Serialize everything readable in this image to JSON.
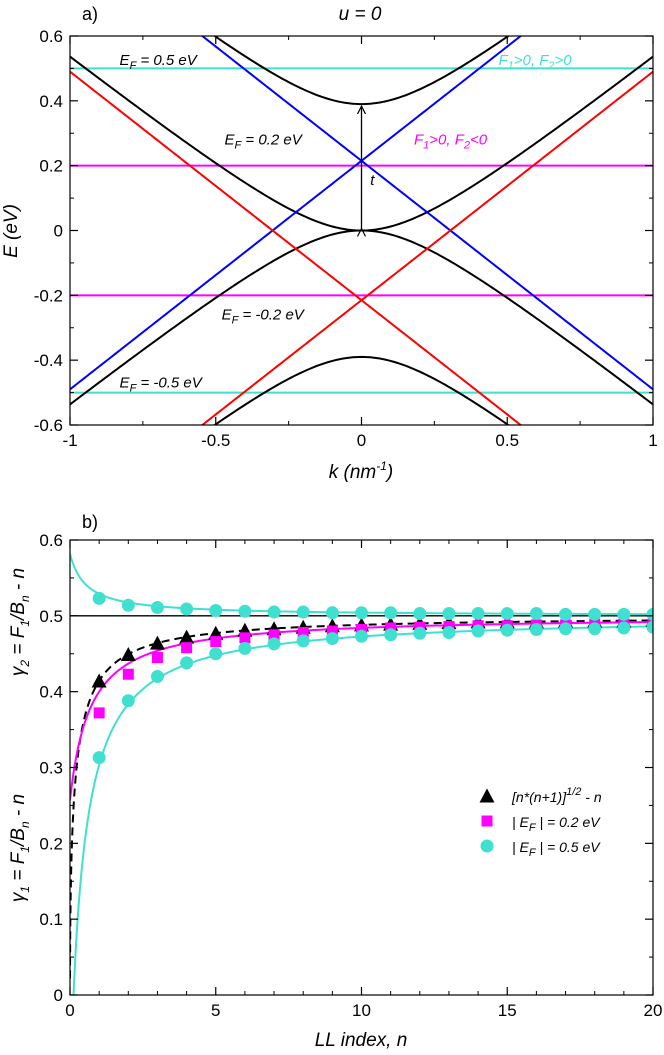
{
  "colors": {
    "black": "#000000",
    "red": "#ff0000",
    "blue": "#0000ff",
    "magenta": "#ff00ff",
    "cyan": "#40e0d0"
  },
  "chart_data": [
    {
      "type": "line",
      "panel_label": "a)",
      "title": "u = 0",
      "xlabel": "k (nm",
      "xlabel_sup": "-1",
      "xlabel_tail": ")",
      "ylabel": "E (eV)",
      "xlim": [
        -1,
        1
      ],
      "ylim": [
        -0.6,
        0.6
      ],
      "xticks": [
        -1,
        -0.5,
        0,
        0.5,
        1
      ],
      "xtick_labels": [
        "-1",
        "-0.5",
        "0",
        "0.5",
        "1"
      ],
      "yticks": [
        -0.6,
        -0.4,
        -0.2,
        0,
        0.2,
        0.4,
        0.6
      ],
      "ytick_labels": [
        "-0.6",
        "-0.4",
        "-0.2",
        "0",
        "0.2",
        "0.4",
        "0.6"
      ],
      "series": [
        {
          "color": "black",
          "kind": "hyperbola",
          "t": 0.39,
          "v": 0.705,
          "sign": 1,
          "offset": 0.195
        },
        {
          "color": "black",
          "kind": "hyperbola",
          "t": 0.39,
          "v": 0.705,
          "sign": -1,
          "offset": 0.195
        },
        {
          "color": "black",
          "kind": "hyperbola",
          "t": 0.39,
          "v": 0.705,
          "sign": 1,
          "offset": -0.195
        },
        {
          "color": "black",
          "kind": "hyperbola",
          "t": 0.39,
          "v": 0.705,
          "sign": -1,
          "offset": -0.195
        },
        {
          "color": "blue",
          "kind": "line",
          "slope": 0.705,
          "intercept": 0.215
        },
        {
          "color": "blue",
          "kind": "line",
          "slope": -0.705,
          "intercept": 0.215
        },
        {
          "color": "red",
          "kind": "line",
          "slope": 0.705,
          "intercept": -0.215
        },
        {
          "color": "red",
          "kind": "line",
          "slope": -0.705,
          "intercept": -0.215
        }
      ],
      "hlines": [
        {
          "y": 0.5,
          "color": "cyan"
        },
        {
          "y": 0.2,
          "color": "magenta"
        },
        {
          "y": -0.2,
          "color": "magenta"
        },
        {
          "y": -0.5,
          "color": "cyan"
        }
      ],
      "arrow": {
        "x": 0,
        "y1": 0.0,
        "y2": 0.39
      },
      "annotations": [
        {
          "id": "ef05",
          "main": "E",
          "sub": "F",
          "rest": " = 0.5 eV",
          "x": -0.83,
          "y": 0.51,
          "color": "black"
        },
        {
          "id": "ef02",
          "main": "E",
          "sub": "F",
          "rest": " = 0.2 eV",
          "x": -0.47,
          "y": 0.265,
          "color": "black"
        },
        {
          "id": "efm02",
          "main": "E",
          "sub": "F",
          "rest": " = -0.2 eV",
          "x": -0.48,
          "y": -0.275,
          "color": "black"
        },
        {
          "id": "efm05",
          "main": "E",
          "sub": "F",
          "rest": " = -0.5 eV",
          "x": -0.83,
          "y": -0.485,
          "color": "black"
        },
        {
          "id": "t",
          "text": "t",
          "x": 0.03,
          "y": 0.14,
          "color": "black"
        }
      ],
      "cond_labels": [
        {
          "text1": "F",
          "sub1": "1",
          "mid": ">0, F",
          "sub2": "2",
          "end": ">0",
          "x": 0.47,
          "y": 0.51,
          "color": "cyan"
        },
        {
          "text1": "F",
          "sub1": "1",
          "mid": ">0, F",
          "sub2": "2",
          "end": "<0",
          "x": 0.18,
          "y": 0.265,
          "color": "magenta"
        }
      ]
    },
    {
      "type": "scatter",
      "panel_label": "b)",
      "xlabel": "LL index, n",
      "ylabel_top": "γ",
      "ylabel_top_sub": "2",
      "ylabel_top_rest": " = F",
      "ylabel_top_sub2": "1",
      "ylabel_top_tail": "/B",
      "ylabel_top_sub3": "n",
      "ylabel_top_end": " - n",
      "ylabel_bottom": "γ",
      "ylabel_bottom_sub": "1",
      "ylabel_bottom_rest": " = F",
      "ylabel_bottom_sub2": "1",
      "ylabel_bottom_tail": "/B",
      "ylabel_bottom_sub3": "n",
      "ylabel_bottom_end": " - n",
      "xlim": [
        0,
        20
      ],
      "ylim": [
        0,
        0.6
      ],
      "xticks": [
        0,
        5,
        10,
        15,
        20
      ],
      "xtick_labels": [
        "0",
        "5",
        "10",
        "15",
        "20"
      ],
      "yticks": [
        0,
        0.1,
        0.2,
        0.3,
        0.4,
        0.5,
        0.6
      ],
      "ytick_labels": [
        "0",
        "0.1",
        "0.2",
        "0.3",
        "0.4",
        "0.5",
        "0.6"
      ],
      "hline": 0.5,
      "series": [
        {
          "name": "[n*(n+1)]",
          "name_sup": "1/2",
          "name_tail": " - n",
          "marker": "triangle",
          "color": "black",
          "x": [
            1,
            2,
            3,
            4,
            5,
            6,
            7,
            8,
            9,
            10,
            11,
            12,
            13,
            14,
            15,
            16,
            17,
            18,
            19,
            20
          ],
          "y": [
            0.414,
            0.449,
            0.464,
            0.472,
            0.477,
            0.481,
            0.483,
            0.485,
            0.487,
            0.488,
            0.489,
            0.49,
            0.491,
            0.492,
            0.492,
            0.492,
            0.493,
            0.493,
            0.493,
            0.494
          ]
        },
        {
          "name": "| E",
          "name_sub": "F",
          "name_tail": " | = 0.2 eV",
          "marker": "square",
          "color": "magenta",
          "x": [
            1,
            2,
            3,
            4,
            5,
            6,
            7,
            8,
            9,
            10,
            11,
            12,
            13,
            14,
            15,
            16,
            17,
            18,
            19,
            20
          ],
          "y": [
            0.372,
            0.423,
            0.445,
            0.458,
            0.466,
            0.471,
            0.475,
            0.478,
            0.48,
            0.482,
            0.484,
            0.485,
            0.486,
            0.487,
            0.487,
            0.488,
            0.488,
            0.489,
            0.489,
            0.489
          ]
        },
        {
          "name": "| E",
          "name_sub": "F",
          "name_tail": " | = 0.5 eV",
          "marker": "circle",
          "color": "cyan",
          "x": [
            1,
            2,
            3,
            4,
            5,
            6,
            7,
            8,
            9,
            10,
            11,
            12,
            13,
            14,
            15,
            16,
            17,
            18,
            19,
            20
          ],
          "y": [
            0.313,
            0.388,
            0.42,
            0.438,
            0.45,
            0.457,
            0.463,
            0.467,
            0.47,
            0.473,
            0.475,
            0.477,
            0.478,
            0.48,
            0.481,
            0.482,
            0.483,
            0.483,
            0.484,
            0.485
          ]
        },
        {
          "name": "",
          "marker": "circle",
          "color": "cyan",
          "upper": true,
          "x": [
            1,
            2,
            3,
            4,
            5,
            6,
            7,
            8,
            9,
            10,
            11,
            12,
            13,
            14,
            15,
            16,
            17,
            18,
            19,
            20
          ],
          "y": [
            0.523,
            0.514,
            0.511,
            0.509,
            0.507,
            0.506,
            0.505,
            0.505,
            0.504,
            0.504,
            0.504,
            0.503,
            0.503,
            0.503,
            0.503,
            0.503,
            0.502,
            0.502,
            0.502,
            0.502
          ]
        }
      ]
    }
  ]
}
